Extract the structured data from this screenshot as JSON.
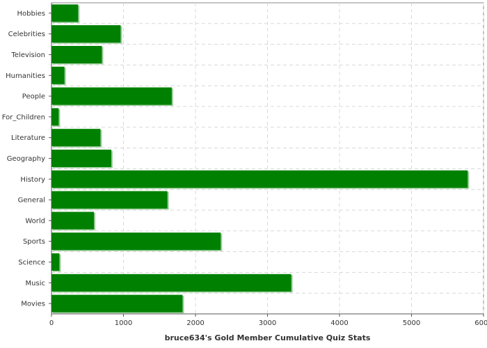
{
  "chart_data": {
    "type": "bar",
    "orientation": "horizontal",
    "xlabel": "bruce634's Gold Member Cumulative Quiz Stats",
    "ylabel": "",
    "xlim": [
      0,
      6000
    ],
    "xticks": [
      0,
      1000,
      2000,
      3000,
      4000,
      5000,
      6000
    ],
    "grid": true,
    "categories": [
      "Hobbies",
      "Celebrities",
      "Television",
      "Humanities",
      "People",
      "For_Children",
      "Literature",
      "Geography",
      "History",
      "General",
      "World",
      "Sports",
      "Science",
      "Music",
      "Movies"
    ],
    "values": [
      370,
      960,
      700,
      180,
      1670,
      100,
      680,
      830,
      5780,
      1610,
      590,
      2350,
      110,
      3330,
      1820
    ],
    "colors": {
      "bar": "#008000",
      "bar_shadow": "#9acd9a"
    }
  }
}
